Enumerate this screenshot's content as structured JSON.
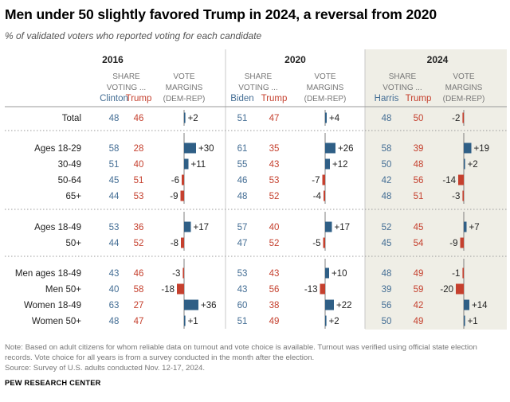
{
  "title": "Men under 50 slightly favored Trump in 2024, a reversal from 2020",
  "subtitle": "% of validated voters who reported voting for each candidate",
  "colors": {
    "dem": "#436d94",
    "rep": "#c5402e",
    "panel_2024": "#efeee6",
    "bar_dem": "#2f5f86",
    "bar_rep": "#c5402e"
  },
  "chart_data": {
    "type": "table",
    "share_label": "SHARE VOTING ...",
    "margin_label": "VOTE MARGINS (DEM-REP)",
    "years": [
      {
        "year": "2016",
        "dem": "Clinton",
        "rep": "Trump"
      },
      {
        "year": "2020",
        "dem": "Biden",
        "rep": "Trump"
      },
      {
        "year": "2024",
        "dem": "Harris",
        "rep": "Trump"
      }
    ],
    "groups": [
      {
        "rows": [
          {
            "label": "Total",
            "values": [
              [
                48,
                46,
                "+2"
              ],
              [
                51,
                47,
                "+4"
              ],
              [
                48,
                50,
                "-2"
              ]
            ]
          }
        ]
      },
      {
        "rows": [
          {
            "label": "Ages 18-29",
            "values": [
              [
                58,
                28,
                "+30"
              ],
              [
                61,
                35,
                "+26"
              ],
              [
                58,
                39,
                "+19"
              ]
            ]
          },
          {
            "label": "30-49",
            "values": [
              [
                51,
                40,
                "+11"
              ],
              [
                55,
                43,
                "+12"
              ],
              [
                50,
                48,
                "+2"
              ]
            ]
          },
          {
            "label": "50-64",
            "values": [
              [
                45,
                51,
                "-6"
              ],
              [
                46,
                53,
                "-7"
              ],
              [
                42,
                56,
                "-14"
              ]
            ]
          },
          {
            "label": "65+",
            "values": [
              [
                44,
                53,
                "-9"
              ],
              [
                48,
                52,
                "-4"
              ],
              [
                48,
                51,
                "-3"
              ]
            ]
          }
        ]
      },
      {
        "rows": [
          {
            "label": "Ages 18-49",
            "values": [
              [
                53,
                36,
                "+17"
              ],
              [
                57,
                40,
                "+17"
              ],
              [
                52,
                45,
                "+7"
              ]
            ]
          },
          {
            "label": "50+",
            "values": [
              [
                44,
                52,
                "-8"
              ],
              [
                47,
                52,
                "-5"
              ],
              [
                45,
                54,
                "-9"
              ]
            ]
          }
        ]
      },
      {
        "rows": [
          {
            "label": "Men ages 18-49",
            "values": [
              [
                43,
                46,
                "-3"
              ],
              [
                53,
                43,
                "+10"
              ],
              [
                48,
                49,
                "-1"
              ]
            ]
          },
          {
            "label": "Men 50+",
            "values": [
              [
                40,
                58,
                "-18"
              ],
              [
                43,
                56,
                "-13"
              ],
              [
                39,
                59,
                "-20"
              ]
            ]
          },
          {
            "label": "Women 18-49",
            "values": [
              [
                63,
                27,
                "+36"
              ],
              [
                60,
                38,
                "+22"
              ],
              [
                56,
                42,
                "+14"
              ]
            ]
          },
          {
            "label": "Women 50+",
            "values": [
              [
                48,
                47,
                "+1"
              ],
              [
                51,
                49,
                "+2"
              ],
              [
                50,
                49,
                "+1"
              ]
            ]
          }
        ]
      }
    ]
  },
  "notes": [
    "Note: Based on adult citizens for whom reliable data on turnout and vote choice is available. Turnout was verified using official state election",
    "records. Vote choice for all years is from a survey conducted in the month after the election.",
    "Source: Survey of U.S. adults conducted Nov. 12-17, 2024."
  ],
  "source_org": "PEW RESEARCH CENTER"
}
